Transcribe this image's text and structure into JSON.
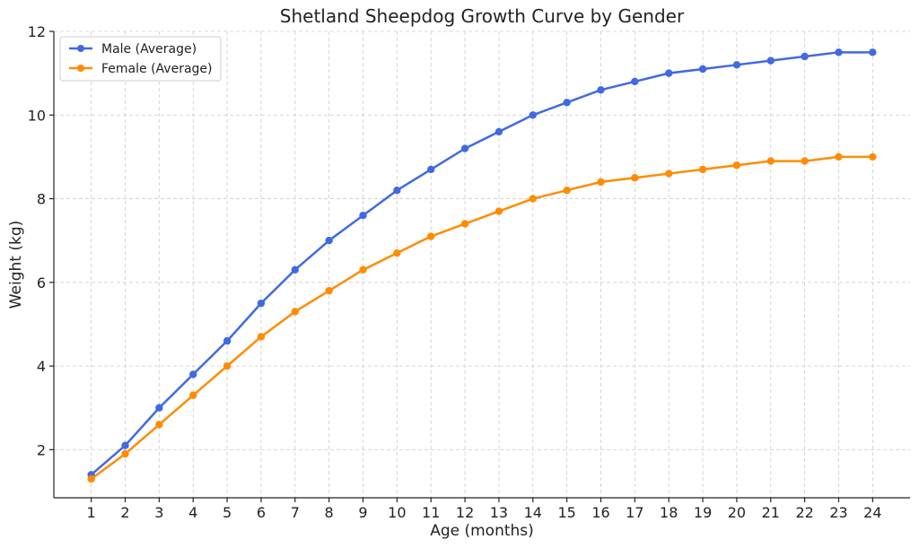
{
  "chart_data": {
    "type": "line",
    "title": "Shetland Sheepdog Growth Curve by Gender",
    "xlabel": "Age (months)",
    "ylabel": "Weight (kg)",
    "x": [
      1,
      2,
      3,
      4,
      5,
      6,
      7,
      8,
      9,
      10,
      11,
      12,
      13,
      14,
      15,
      16,
      17,
      18,
      19,
      20,
      21,
      22,
      23,
      24
    ],
    "xticks": [
      "1",
      "2",
      "3",
      "4",
      "5",
      "6",
      "7",
      "8",
      "9",
      "10",
      "11",
      "12",
      "13",
      "14",
      "15",
      "16",
      "17",
      "18",
      "19",
      "20",
      "21",
      "22",
      "23",
      "24"
    ],
    "yticks": [
      "2",
      "4",
      "6",
      "8",
      "10",
      "12"
    ],
    "ylim": [
      0.85,
      12
    ],
    "xlim": [
      -0.1,
      25.1
    ],
    "grid": true,
    "legend_position": "top-left",
    "series": [
      {
        "name": "Male (Average)",
        "color": "#4169e1",
        "values": [
          1.4,
          2.1,
          3.0,
          3.8,
          4.6,
          5.5,
          6.3,
          7.0,
          7.6,
          8.2,
          8.7,
          9.2,
          9.6,
          10.0,
          10.3,
          10.6,
          10.8,
          11.0,
          11.1,
          11.2,
          11.3,
          11.4,
          11.5,
          11.5
        ]
      },
      {
        "name": "Female (Average)",
        "color": "#ff8c00",
        "values": [
          1.3,
          1.9,
          2.6,
          3.3,
          4.0,
          4.7,
          5.3,
          5.8,
          6.3,
          6.7,
          7.1,
          7.4,
          7.7,
          8.0,
          8.2,
          8.4,
          8.5,
          8.6,
          8.7,
          8.8,
          8.9,
          8.9,
          9.0,
          9.0
        ]
      }
    ]
  }
}
